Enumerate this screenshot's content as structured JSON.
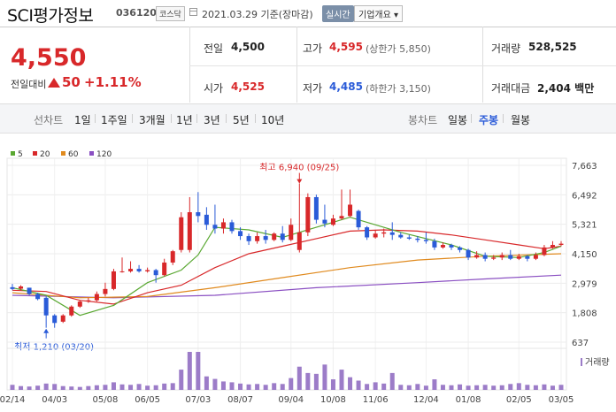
{
  "header": {
    "name": "SCI평가정보",
    "code": "036120",
    "market": "코스닥",
    "date": "2021.03.29",
    "basis": "기준(장마감)",
    "realtime": "실시간",
    "overview": "기업개요"
  },
  "summary": {
    "price": "4,550",
    "change_label": "전일대비",
    "change_value": "50",
    "change_pct": "+1.11%",
    "prev_label": "전일",
    "prev_value": "4,500",
    "open_label": "시가",
    "open_value": "4,525",
    "high_label": "고가",
    "high_value": "4,595",
    "upper_limit": "(상한가 5,850)",
    "low_label": "저가",
    "low_value": "4,485",
    "lower_limit": "(하한가 3,150)",
    "volume_label": "거래량",
    "volume_value": "528,525",
    "amount_label": "거래대금",
    "amount_value": "2,404",
    "amount_unit": "백만"
  },
  "periods": {
    "line_chart": "선차트",
    "items": [
      "1일",
      "1주일",
      "3개월",
      "1년",
      "3년",
      "5년",
      "10년"
    ],
    "candle_chart": "봉차트",
    "candle_items": [
      "일봉",
      "주봉",
      "월봉"
    ],
    "active_candle": "주봉"
  },
  "colors": {
    "up": "#d8282a",
    "down": "#2a5bd8",
    "ma5": "#5aa832",
    "ma20": "#d8282a",
    "ma60": "#e08a1e",
    "ma120": "#8a4fc2",
    "volume": "#9c7cc8"
  },
  "chart_data": {
    "type": "candlestick",
    "legend": [
      "5",
      "20",
      "60",
      "120"
    ],
    "legend_placement": "top-left",
    "y_ticks": [
      7663,
      6492,
      5321,
      4150,
      2979,
      1808,
      637
    ],
    "y_tick_labels": [
      "7,663",
      "6,492",
      "5,321",
      "4,150",
      "2,979",
      "1,808",
      "637"
    ],
    "ylim": [
      637,
      7663
    ],
    "x_labels": [
      "02/14",
      "04/03",
      "05/08",
      "06/05",
      "07/03",
      "08/07",
      "09/04",
      "10/08",
      "11/06",
      "12/04",
      "01/08",
      "02/05",
      "03/05"
    ],
    "annotations": {
      "max_text": "최고 6,940 (09/25)",
      "min_text": "최저 1,210 (03/20)"
    },
    "volume_label": "거래량",
    "candles": [
      {
        "o": 2820,
        "c": 2750,
        "h": 2950,
        "l": 2700
      },
      {
        "o": 2760,
        "c": 2850,
        "h": 2900,
        "l": 2700
      },
      {
        "o": 2800,
        "c": 2550,
        "h": 2800,
        "l": 2500
      },
      {
        "o": 2550,
        "c": 2350,
        "h": 2600,
        "l": 2300
      },
      {
        "o": 2400,
        "c": 1700,
        "h": 2450,
        "l": 1210
      },
      {
        "o": 1700,
        "c": 1400,
        "h": 1750,
        "l": 1210
      },
      {
        "o": 1450,
        "c": 1700,
        "h": 1750,
        "l": 1400
      },
      {
        "o": 1700,
        "c": 2050,
        "h": 2100,
        "l": 1650
      },
      {
        "o": 2050,
        "c": 2250,
        "h": 2300,
        "l": 2000
      },
      {
        "o": 2250,
        "c": 2300,
        "h": 2400,
        "l": 2200
      },
      {
        "o": 2300,
        "c": 2550,
        "h": 2650,
        "l": 2250
      },
      {
        "o": 2550,
        "c": 2750,
        "h": 3000,
        "l": 2450
      },
      {
        "o": 2750,
        "c": 3450,
        "h": 3550,
        "l": 2700
      },
      {
        "o": 3450,
        "c": 3450,
        "h": 4000,
        "l": 3400
      },
      {
        "o": 3450,
        "c": 3550,
        "h": 3850,
        "l": 3400
      },
      {
        "o": 3550,
        "c": 3450,
        "h": 3700,
        "l": 3400
      },
      {
        "o": 3450,
        "c": 3500,
        "h": 3600,
        "l": 3400
      },
      {
        "o": 3500,
        "c": 3300,
        "h": 3550,
        "l": 3000
      },
      {
        "o": 3300,
        "c": 3800,
        "h": 3950,
        "l": 3250
      },
      {
        "o": 3800,
        "c": 4250,
        "h": 4300,
        "l": 3700
      },
      {
        "o": 4300,
        "c": 5600,
        "h": 5800,
        "l": 4200
      },
      {
        "o": 4300,
        "c": 5800,
        "h": 6400,
        "l": 4200
      },
      {
        "o": 5800,
        "c": 5650,
        "h": 6600,
        "l": 5400
      },
      {
        "o": 5700,
        "c": 5300,
        "h": 6000,
        "l": 5100
      },
      {
        "o": 5300,
        "c": 5150,
        "h": 6100,
        "l": 4950
      },
      {
        "o": 5150,
        "c": 5400,
        "h": 5550,
        "l": 4950
      },
      {
        "o": 5400,
        "c": 5050,
        "h": 5500,
        "l": 4950
      },
      {
        "o": 5050,
        "c": 4850,
        "h": 5200,
        "l": 4700
      },
      {
        "o": 4850,
        "c": 4650,
        "h": 4950,
        "l": 4500
      },
      {
        "o": 4650,
        "c": 4850,
        "h": 5000,
        "l": 4550
      },
      {
        "o": 4850,
        "c": 4700,
        "h": 5100,
        "l": 4550
      },
      {
        "o": 4700,
        "c": 4950,
        "h": 5000,
        "l": 4650
      },
      {
        "o": 4950,
        "c": 4700,
        "h": 5250,
        "l": 4600
      },
      {
        "o": 4700,
        "c": 5300,
        "h": 5550,
        "l": 4650
      },
      {
        "o": 4300,
        "c": 5000,
        "h": 6940,
        "l": 4200
      },
      {
        "o": 5000,
        "c": 6400,
        "h": 6550,
        "l": 4850
      },
      {
        "o": 6400,
        "c": 5500,
        "h": 6500,
        "l": 5350
      },
      {
        "o": 5500,
        "c": 5350,
        "h": 6100,
        "l": 5200
      },
      {
        "o": 5300,
        "c": 5550,
        "h": 5700,
        "l": 5250
      },
      {
        "o": 5550,
        "c": 5650,
        "h": 6700,
        "l": 5500
      },
      {
        "o": 5650,
        "c": 6100,
        "h": 6700,
        "l": 5600
      },
      {
        "o": 5850,
        "c": 5200,
        "h": 5900,
        "l": 5100
      },
      {
        "o": 5200,
        "c": 4800,
        "h": 5250,
        "l": 4700
      },
      {
        "o": 4800,
        "c": 4950,
        "h": 5100,
        "l": 4750
      },
      {
        "o": 4950,
        "c": 5000,
        "h": 5150,
        "l": 4800
      },
      {
        "o": 5000,
        "c": 4900,
        "h": 5400,
        "l": 4700
      },
      {
        "o": 4900,
        "c": 4800,
        "h": 5000,
        "l": 4750
      },
      {
        "o": 4800,
        "c": 4750,
        "h": 4900,
        "l": 4700
      },
      {
        "o": 4750,
        "c": 4700,
        "h": 4850,
        "l": 4600
      },
      {
        "o": 4700,
        "c": 4650,
        "h": 5000,
        "l": 4550
      },
      {
        "o": 4650,
        "c": 4400,
        "h": 4750,
        "l": 4300
      },
      {
        "o": 4400,
        "c": 4500,
        "h": 4600,
        "l": 4350
      },
      {
        "o": 4500,
        "c": 4400,
        "h": 4550,
        "l": 4300
      },
      {
        "o": 4400,
        "c": 4300,
        "h": 4450,
        "l": 4200
      },
      {
        "o": 4300,
        "c": 4000,
        "h": 4350,
        "l": 3900
      },
      {
        "o": 4000,
        "c": 4100,
        "h": 4250,
        "l": 3950
      },
      {
        "o": 4100,
        "c": 3950,
        "h": 4200,
        "l": 3850
      },
      {
        "o": 3950,
        "c": 4000,
        "h": 4100,
        "l": 3900
      },
      {
        "o": 4000,
        "c": 4100,
        "h": 4200,
        "l": 3900
      },
      {
        "o": 4100,
        "c": 3950,
        "h": 4300,
        "l": 3900
      },
      {
        "o": 3950,
        "c": 4050,
        "h": 4150,
        "l": 3900
      },
      {
        "o": 4050,
        "c": 3950,
        "h": 4100,
        "l": 3850
      },
      {
        "o": 3950,
        "c": 4100,
        "h": 4200,
        "l": 3900
      },
      {
        "o": 4100,
        "c": 4400,
        "h": 4500,
        "l": 4050
      },
      {
        "o": 4400,
        "c": 4500,
        "h": 4650,
        "l": 4350
      },
      {
        "o": 4500,
        "c": 4550,
        "h": 4650,
        "l": 4450
      }
    ],
    "volumes": [
      12,
      9,
      8,
      10,
      15,
      14,
      9,
      8,
      7,
      9,
      11,
      12,
      18,
      13,
      12,
      14,
      10,
      11,
      15,
      16,
      48,
      90,
      90,
      32,
      26,
      20,
      18,
      15,
      13,
      14,
      12,
      16,
      14,
      28,
      55,
      40,
      38,
      60,
      25,
      48,
      30,
      22,
      14,
      18,
      15,
      40,
      12,
      11,
      14,
      10,
      25,
      12,
      11,
      13,
      10,
      11,
      12,
      10,
      11,
      14,
      16,
      12,
      11,
      13,
      10,
      12
    ],
    "ma5": [
      [
        0,
        2800
      ],
      [
        4,
        2500
      ],
      [
        8,
        1700
      ],
      [
        12,
        2100
      ],
      [
        16,
        3000
      ],
      [
        20,
        3500
      ],
      [
        22,
        4100
      ],
      [
        24,
        5200
      ],
      [
        28,
        5100
      ],
      [
        32,
        4800
      ],
      [
        36,
        5200
      ],
      [
        40,
        5600
      ],
      [
        42,
        5400
      ],
      [
        46,
        5000
      ],
      [
        52,
        4500
      ],
      [
        56,
        4050
      ],
      [
        60,
        4000
      ],
      [
        63,
        4200
      ],
      [
        65,
        4450
      ]
    ],
    "ma20": [
      [
        0,
        2700
      ],
      [
        4,
        2650
      ],
      [
        8,
        2300
      ],
      [
        12,
        2150
      ],
      [
        16,
        2600
      ],
      [
        20,
        2900
      ],
      [
        24,
        3600
      ],
      [
        28,
        4150
      ],
      [
        32,
        4450
      ],
      [
        36,
        4750
      ],
      [
        40,
        5050
      ],
      [
        44,
        5100
      ],
      [
        48,
        5050
      ],
      [
        52,
        4900
      ],
      [
        56,
        4700
      ],
      [
        60,
        4500
      ],
      [
        63,
        4350
      ],
      [
        65,
        4450
      ]
    ],
    "ma60": [
      [
        0,
        2600
      ],
      [
        8,
        2400
      ],
      [
        16,
        2450
      ],
      [
        24,
        2800
      ],
      [
        32,
        3200
      ],
      [
        40,
        3600
      ],
      [
        48,
        3900
      ],
      [
        56,
        4050
      ],
      [
        65,
        4150
      ]
    ],
    "ma120": [
      [
        0,
        2500
      ],
      [
        12,
        2400
      ],
      [
        24,
        2500
      ],
      [
        36,
        2800
      ],
      [
        48,
        3000
      ],
      [
        56,
        3150
      ],
      [
        65,
        3300
      ]
    ]
  }
}
